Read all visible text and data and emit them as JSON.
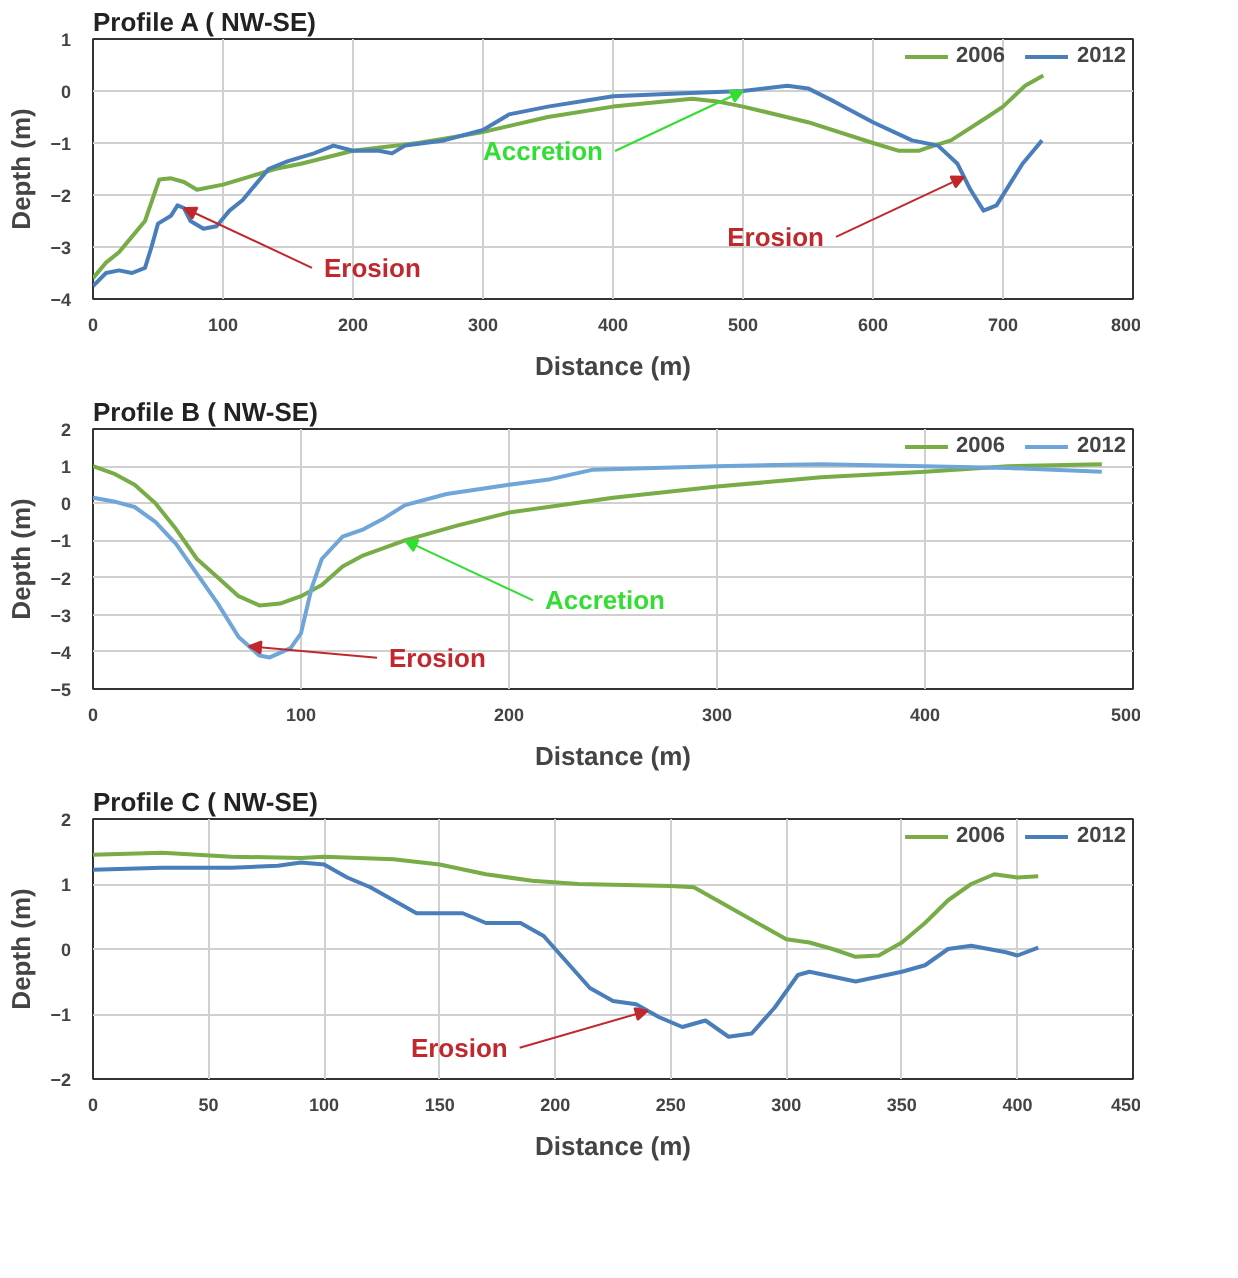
{
  "chart_data": [
    {
      "type": "line",
      "title": "Profile A ( NW-SE)",
      "xlabel": "Distance (m)",
      "ylabel": "Depth (m)",
      "xlim": [
        0,
        800
      ],
      "ylim": [
        -4,
        1
      ],
      "xticks": [
        0,
        100,
        200,
        300,
        400,
        500,
        600,
        700,
        800
      ],
      "yticks": [
        -4,
        -3,
        -2,
        -1,
        0,
        1
      ],
      "grid": true,
      "legend": "top right",
      "series": [
        {
          "name": "2006",
          "color": "#77ac47",
          "x": [
            0,
            10,
            20,
            30,
            40,
            51,
            60,
            70,
            80,
            100,
            120,
            140,
            160,
            200,
            250,
            298,
            350,
            400,
            461,
            480,
            500,
            550,
            600,
            620,
            635,
            641,
            660,
            688,
            700,
            717,
            731
          ],
          "values": [
            -3.6,
            -3.3,
            -3.1,
            -2.8,
            -2.5,
            -1.7,
            -1.68,
            -1.75,
            -1.9,
            -1.8,
            -1.65,
            -1.5,
            -1.4,
            -1.15,
            -1.0,
            -0.8,
            -0.5,
            -0.3,
            -0.15,
            -0.2,
            -0.3,
            -0.6,
            -1.0,
            -1.15,
            -1.15,
            -1.1,
            -0.95,
            -0.5,
            -0.3,
            0.1,
            0.3
          ]
        },
        {
          "name": "2012",
          "color": "#4a7ebb",
          "x": [
            0,
            10,
            20,
            30,
            40,
            45,
            50,
            60,
            65,
            70,
            75,
            85,
            95,
            105,
            115,
            125,
            135,
            150,
            170,
            185,
            200,
            220,
            230,
            240,
            270,
            300,
            320,
            350,
            400,
            450,
            500,
            534,
            550,
            570,
            600,
            630,
            650,
            665,
            675,
            685,
            695,
            705,
            715,
            725,
            730
          ],
          "values": [
            -3.75,
            -3.5,
            -3.45,
            -3.5,
            -3.4,
            -3.0,
            -2.55,
            -2.4,
            -2.2,
            -2.25,
            -2.5,
            -2.65,
            -2.6,
            -2.3,
            -2.1,
            -1.8,
            -1.5,
            -1.35,
            -1.2,
            -1.05,
            -1.15,
            -1.15,
            -1.2,
            -1.05,
            -0.95,
            -0.75,
            -0.45,
            -0.3,
            -0.1,
            -0.05,
            0.0,
            0.1,
            0.05,
            -0.2,
            -0.6,
            -0.95,
            -1.05,
            -1.4,
            -1.9,
            -2.3,
            -2.2,
            -1.8,
            -1.4,
            -1.1,
            -0.95
          ]
        }
      ],
      "annotations": [
        {
          "text": "Erosion",
          "x": 70,
          "y": -2.25
        },
        {
          "text": "Accretion",
          "x": 500,
          "y": 0.0
        },
        {
          "text": "Erosion",
          "x": 670,
          "y": -1.65
        }
      ]
    },
    {
      "type": "line",
      "title": "Profile B ( NW-SE)",
      "xlabel": "Distance (m)",
      "ylabel": "Depth (m)",
      "xlim": [
        0,
        500
      ],
      "ylim": [
        -5,
        2
      ],
      "xticks": [
        0,
        100,
        200,
        300,
        400,
        500
      ],
      "yticks": [
        -5,
        -4,
        -3,
        -2,
        -1,
        0,
        1,
        2
      ],
      "grid": true,
      "legend": "top right",
      "series": [
        {
          "name": "2006",
          "color": "#77ac47",
          "x": [
            0,
            10,
            20,
            30,
            40,
            50,
            60,
            70,
            80,
            90,
            100,
            110,
            120,
            130,
            150,
            175,
            200,
            250,
            300,
            350,
            400,
            440,
            485
          ],
          "values": [
            1.0,
            0.8,
            0.5,
            0.0,
            -0.7,
            -1.5,
            -2.0,
            -2.5,
            -2.75,
            -2.7,
            -2.5,
            -2.2,
            -1.7,
            -1.4,
            -1.0,
            -0.6,
            -0.25,
            0.15,
            0.45,
            0.7,
            0.85,
            1.0,
            1.05
          ]
        },
        {
          "name": "2012",
          "color": "#6fa5d8",
          "x": [
            0,
            10,
            20,
            30,
            40,
            50,
            60,
            70,
            80,
            85,
            95,
            100,
            105,
            110,
            120,
            130,
            140,
            150,
            170,
            200,
            220,
            240,
            300,
            350,
            400,
            440,
            485
          ],
          "values": [
            0.15,
            0.05,
            -0.1,
            -0.5,
            -1.1,
            -1.9,
            -2.7,
            -3.6,
            -4.1,
            -4.15,
            -3.9,
            -3.5,
            -2.3,
            -1.5,
            -0.9,
            -0.7,
            -0.4,
            -0.05,
            0.25,
            0.5,
            0.65,
            0.9,
            1.0,
            1.05,
            1.0,
            0.95,
            0.85
          ]
        }
      ],
      "annotations": [
        {
          "text": "Accretion",
          "x": 150,
          "y": -1.0
        },
        {
          "text": "Erosion",
          "x": 75,
          "y": -3.85
        }
      ]
    },
    {
      "type": "line",
      "title": "Profile C ( NW-SE)",
      "xlabel": "Distance (m)",
      "ylabel": "Depth (m)",
      "xlim": [
        0,
        450
      ],
      "ylim": [
        -2,
        2
      ],
      "xticks": [
        0,
        50,
        100,
        150,
        200,
        250,
        300,
        350,
        400,
        450
      ],
      "yticks": [
        -2,
        -1,
        0,
        1,
        2
      ],
      "grid": true,
      "legend": "top right",
      "series": [
        {
          "name": "2006",
          "color": "#77ac47",
          "x": [
            0,
            30,
            60,
            90,
            100,
            130,
            150,
            170,
            190,
            210,
            250,
            260,
            270,
            280,
            290,
            300,
            310,
            320,
            330,
            340,
            350,
            360,
            370,
            380,
            390,
            400,
            409
          ],
          "values": [
            1.45,
            1.48,
            1.42,
            1.4,
            1.42,
            1.38,
            1.3,
            1.15,
            1.05,
            1.0,
            0.97,
            0.95,
            0.75,
            0.55,
            0.35,
            0.15,
            0.1,
            0.0,
            -0.12,
            -0.1,
            0.1,
            0.4,
            0.75,
            1.0,
            1.15,
            1.1,
            1.12
          ]
        },
        {
          "name": "2012",
          "color": "#4a7ebb",
          "x": [
            0,
            30,
            60,
            80,
            90,
            100,
            110,
            120,
            130,
            140,
            160,
            170,
            185,
            195,
            205,
            215,
            225,
            235,
            245,
            255,
            265,
            275,
            285,
            295,
            305,
            310,
            330,
            350,
            360,
            370,
            380,
            395,
            400,
            409
          ],
          "values": [
            1.22,
            1.25,
            1.25,
            1.28,
            1.33,
            1.3,
            1.1,
            0.95,
            0.75,
            0.55,
            0.55,
            0.4,
            0.4,
            0.2,
            -0.2,
            -0.6,
            -0.8,
            -0.85,
            -1.05,
            -1.2,
            -1.1,
            -1.35,
            -1.3,
            -0.9,
            -0.4,
            -0.35,
            -0.5,
            -0.35,
            -0.25,
            0.0,
            0.05,
            -0.05,
            -0.1,
            0.02
          ]
        }
      ],
      "annotations": [
        {
          "text": "Erosion",
          "x": 240,
          "y": -0.95
        }
      ]
    }
  ]
}
